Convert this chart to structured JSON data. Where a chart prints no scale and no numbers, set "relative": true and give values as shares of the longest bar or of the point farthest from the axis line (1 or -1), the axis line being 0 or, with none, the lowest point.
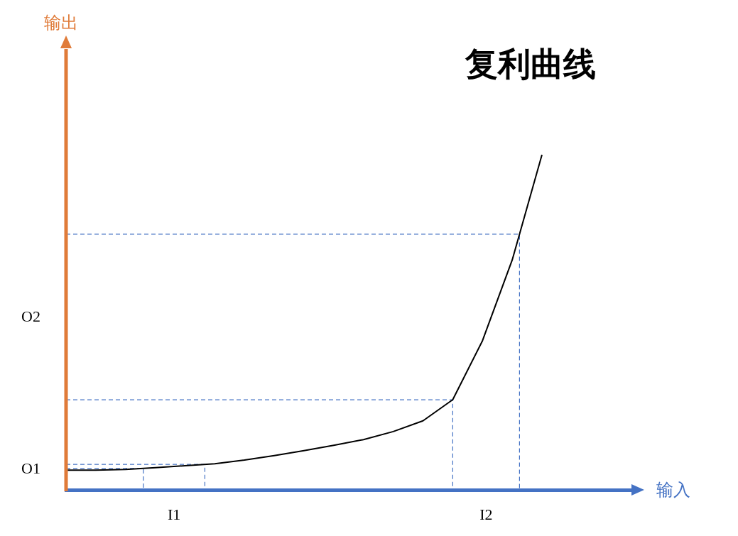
{
  "chart_data": {
    "type": "line",
    "title": "复利曲线",
    "relative": true,
    "legend": false,
    "grid": false,
    "marker": "none",
    "line_style": "solid",
    "annotations": [
      "输出",
      "输入",
      "I1",
      "I2",
      "O1",
      "O2"
    ],
    "categories": [
      null,
      null,
      null,
      null,
      null,
      null,
      null,
      null,
      null,
      null,
      null,
      null,
      null,
      null,
      null,
      null,
      null,
      null,
      null,
      null
    ],
    "series": [
      {
        "color": "#000000",
        "values": [
          0.059,
          0.059,
          0.061,
          0.066,
          0.072,
          0.078,
          0.089,
          0.102,
          0.117,
          0.133,
          0.15,
          0.174,
          0.206,
          0.269,
          0.445,
          0.686,
          1,
          null,
          null,
          null
        ]
      }
    ],
    "ref_lines": [
      {
        "axis": "y",
        "value": 0.064,
        "color": "#4472c4",
        "line_style": "dashed"
      },
      {
        "axis": "y",
        "value": 0.076,
        "color": "#4472c4",
        "line_style": "dashed"
      },
      {
        "axis": "y",
        "value": 0.269,
        "color": "#4472c4",
        "line_style": "dashed"
      },
      {
        "axis": "y",
        "value": 0.763,
        "color": "#4472c4",
        "line_style": "dashed"
      }
    ]
  }
}
